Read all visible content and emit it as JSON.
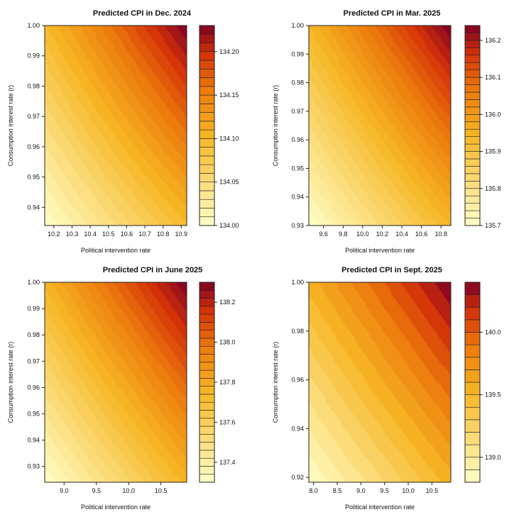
{
  "chart_data": [
    {
      "type": "heatmap",
      "title": "Predicted CPI in Dec. 2024",
      "xlabel": "Political intervention rate",
      "ylabel": "Consumption interest rate (r)",
      "xlim": [
        10.15,
        10.93
      ],
      "ylim": [
        0.934,
        1.0
      ],
      "xticks": [
        "10.2",
        "10.3",
        "10.4",
        "10.5",
        "10.6",
        "10.7",
        "10.8",
        "10.9"
      ],
      "yticks": [
        "0.94",
        "0.95",
        "0.96",
        "0.97",
        "0.98",
        "0.99",
        "1.00"
      ],
      "zlim": [
        134.0,
        134.23
      ],
      "zticks": [
        "134.00",
        "134.05",
        "134.10",
        "134.15",
        "134.20"
      ],
      "levels": 23,
      "curvature": 0.35
    },
    {
      "type": "heatmap",
      "title": "Predicted CPI in Mar. 2025",
      "xlabel": "Political intervention rate",
      "ylabel": "Consumption interest rate (r)",
      "xlim": [
        9.45,
        10.9
      ],
      "ylim": [
        0.93,
        1.0
      ],
      "xticks": [
        "9.6",
        "9.8",
        "10.0",
        "10.2",
        "10.4",
        "10.6",
        "10.8"
      ],
      "yticks": [
        "0.93",
        "0.94",
        "0.95",
        "0.96",
        "0.97",
        "0.98",
        "0.99",
        "1.00"
      ],
      "zlim": [
        135.7,
        136.24
      ],
      "zticks": [
        "135.7",
        "135.8",
        "135.9",
        "136.0",
        "136.1",
        "136.2"
      ],
      "levels": 27,
      "curvature": 0.25
    },
    {
      "type": "heatmap",
      "title": "Predicted CPI in June 2025",
      "xlabel": "Political intervention rate",
      "ylabel": "Consumption interest rate (r)",
      "xlim": [
        8.7,
        10.9
      ],
      "ylim": [
        0.924,
        1.0
      ],
      "xticks": [
        "9.0",
        "9.5",
        "10.0",
        "10.5"
      ],
      "yticks": [
        "0.93",
        "0.94",
        "0.95",
        "0.96",
        "0.97",
        "0.98",
        "0.99",
        "1.00"
      ],
      "zlim": [
        137.3,
        138.3
      ],
      "zticks": [
        "137.4",
        "137.6",
        "137.8",
        "138.0",
        "138.2"
      ],
      "levels": 25,
      "curvature": 0.2
    },
    {
      "type": "heatmap",
      "title": "Predicted CPI in Sept. 2025",
      "xlabel": "Political intervention rate",
      "ylabel": "Consumption interest rate (r)",
      "xlim": [
        7.9,
        10.9
      ],
      "ylim": [
        0.918,
        1.0
      ],
      "xticks": [
        "8.0",
        "8.5",
        "9.0",
        "9.5",
        "10.0",
        "10.5"
      ],
      "yticks": [
        "0.92",
        "0.94",
        "0.96",
        "0.98",
        "1.00"
      ],
      "zlim": [
        138.8,
        140.4
      ],
      "zticks": [
        "139.0",
        "139.5",
        "140.0"
      ],
      "levels": 16,
      "curvature": 0.15
    }
  ],
  "colors": {
    "low": "#ffffc8",
    "mid_yellow": "#f6b624",
    "orange": "#ec7a0c",
    "red": "#d33108",
    "high": "#7d0025",
    "frame": "#222222"
  }
}
